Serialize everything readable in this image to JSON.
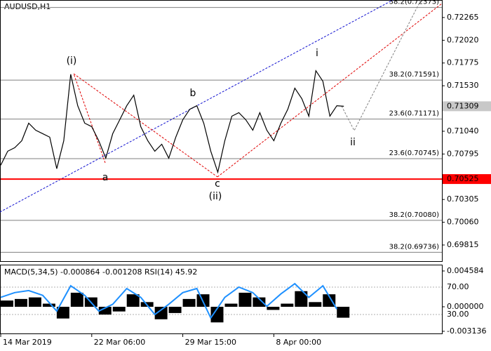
{
  "chart_data": [
    {
      "type": "line",
      "title": "AUDUSD,H1",
      "x": [
        0,
        1,
        2,
        3,
        4,
        5,
        6,
        7,
        8,
        9,
        10,
        11,
        12,
        13,
        14,
        15,
        16,
        17,
        18,
        19,
        20,
        21,
        22,
        23,
        24,
        25,
        26,
        27,
        28,
        29,
        30,
        31,
        32,
        33,
        34,
        35,
        36,
        37,
        38,
        39,
        40,
        41,
        42,
        43,
        44,
        45,
        46,
        47,
        48,
        49
      ],
      "series": [
        {
          "name": "AUDUSD",
          "color": "#000000",
          "values": [
            0.70674,
            0.70825,
            0.70863,
            0.70938,
            0.71127,
            0.71051,
            0.71014,
            0.70976,
            0.70637,
            0.70938,
            0.71654,
            0.71315,
            0.71127,
            0.71089,
            0.70938,
            0.7075,
            0.71014,
            0.71164,
            0.71315,
            0.71428,
            0.71089,
            0.70938,
            0.70825,
            0.709,
            0.7075,
            0.70976,
            0.71164,
            0.71277,
            0.71315,
            0.71127,
            0.70825,
            0.70599,
            0.70938,
            0.71202,
            0.7124,
            0.71164,
            0.71051,
            0.7124,
            0.71051,
            0.70938,
            0.71127,
            0.71277,
            0.71504,
            0.71391,
            0.71202,
            0.71692,
            0.71579,
            0.71202,
            0.71315,
            0.71309
          ]
        }
      ],
      "xlim": [
        0,
        63
      ],
      "xticks": [
        {
          "value": 0,
          "label": "14 Mar 2019"
        },
        {
          "value": 13,
          "label": "22 Mar 06:00"
        },
        {
          "value": 26,
          "label": "29 Mar 15:00"
        },
        {
          "value": 39,
          "label": "8 Apr 00:00"
        }
      ],
      "ylim": [
        0.69641,
        0.72446
      ],
      "yticks": [
        0.72265,
        {
          "value": 0.7202,
          "label": "0.72020"
        },
        0.71775,
        {
          "value": 0.7153,
          "label": "0.71530"
        },
        {
          "value": 0.7104,
          "label": "0.71040"
        },
        0.70795,
        0.70305,
        {
          "value": 0.7006,
          "label": "0.70060"
        },
        0.69815
      ],
      "current_price": 0.71309,
      "support_level": 0.70525,
      "support_color": "#ff0000",
      "levels": [
        {
          "label": "38.2(0.72373)",
          "value": 0.72373
        },
        {
          "label": "38.2(0.71591)",
          "value": 0.71591
        },
        {
          "label": "23.6(0.71171)",
          "value": 0.71171
        },
        {
          "label": "23.6(0.70745)",
          "value": 0.70745
        },
        {
          "label": "38.2(0.70080)",
          "value": 0.7008
        },
        {
          "label": "38.2(0.69736)",
          "value": 0.69736
        }
      ],
      "annotations": [
        {
          "text": "(i)",
          "color": "#e00000"
        },
        {
          "text": "(ii)",
          "color": "#e00000"
        },
        {
          "text": "a",
          "color": "#777777"
        },
        {
          "text": "b",
          "color": "#777777"
        },
        {
          "text": "c",
          "color": "#777777"
        },
        {
          "text": "i",
          "color": "#777777"
        },
        {
          "text": "ii",
          "color": "#777777"
        }
      ]
    },
    {
      "type": "bar",
      "title": "MACD(5,34,5) -0.000864 -0.001208 RSI(14) 45.92",
      "x": [
        0,
        2,
        4,
        6,
        8,
        10,
        12,
        14,
        16,
        18,
        20,
        22,
        24,
        26,
        28,
        30,
        32,
        34,
        36,
        38,
        40,
        42,
        44,
        46,
        48
      ],
      "series": [
        {
          "name": "MACD",
          "color": "#000000",
          "values": [
            0.0008,
            0.001,
            0.0012,
            0.0004,
            -0.0015,
            0.0018,
            0.0012,
            -0.001,
            -0.0006,
            0.0016,
            0.0006,
            -0.0016,
            -0.0008,
            0.001,
            0.0016,
            -0.002,
            0.0004,
            0.0018,
            0.0012,
            -0.0004,
            0.0004,
            0.002,
            0.0006,
            0.0016,
            -0.0014
          ]
        },
        {
          "name": "RSI(14)",
          "color": "#1e90ff",
          "axis": "y2",
          "values": [
            55,
            62,
            65,
            58,
            35,
            72,
            58,
            35,
            45,
            68,
            55,
            30,
            45,
            62,
            68,
            25,
            55,
            70,
            62,
            42,
            60,
            75,
            55,
            72,
            38
          ]
        }
      ],
      "xlim": [
        0,
        63
      ],
      "ylim": [
        -0.003415,
        0.005303
      ],
      "yticks": [
        0.004584,
        {
          "value": 0,
          "label": "0.000000"
        },
        -0.003136
      ],
      "y2lim": [
        2.3,
        101.8
      ],
      "y2ticks": [
        {
          "value": 70,
          "label": "70.00"
        },
        {
          "value": 30,
          "label": "30.00"
        }
      ]
    }
  ]
}
